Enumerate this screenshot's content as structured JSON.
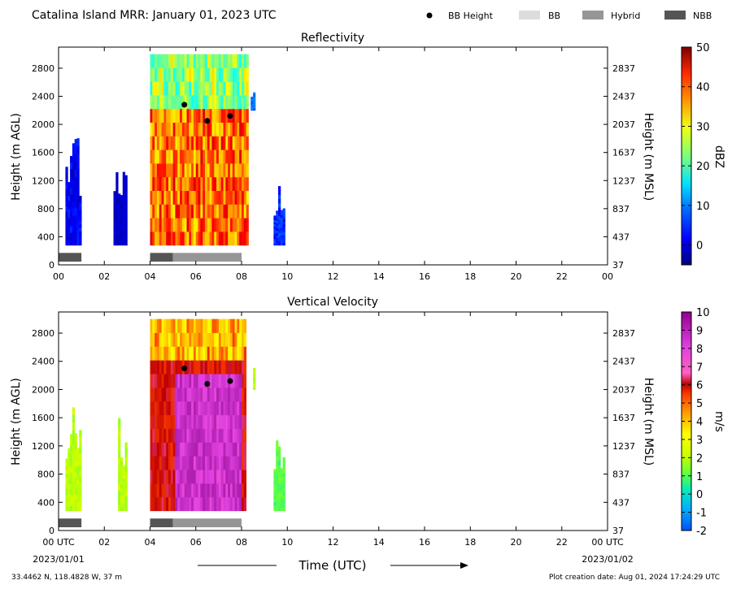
{
  "header": {
    "title": "Catalina Island MRR:  January 01, 2023 UTC",
    "legend": [
      {
        "label": "BB Height",
        "kind": "dot",
        "color": "#000000"
      },
      {
        "label": "BB",
        "kind": "box",
        "color": "#dcdcdc"
      },
      {
        "label": "Hybrid",
        "kind": "box",
        "color": "#969696"
      },
      {
        "label": "NBB",
        "kind": "box",
        "color": "#555555"
      }
    ]
  },
  "footer": {
    "location": "33.4462 N, 118.4828 W, 37 m",
    "creation": "Plot creation date: Aug 01, 2024 17:24:29 UTC",
    "date_left": "2023/01/01",
    "date_right": "2023/01/02"
  },
  "chart_data": [
    {
      "type": "heatmap",
      "title": "Reflectivity",
      "xlabel": "",
      "ylabel": "Height (m AGL)",
      "ylabel_right": "Height (m MSL)",
      "xlim": [
        0,
        24
      ],
      "ylim": [
        0,
        3100
      ],
      "x_ticks": [
        "00",
        "02",
        "04",
        "06",
        "08",
        "10",
        "12",
        "14",
        "16",
        "18",
        "20",
        "22",
        "00"
      ],
      "y_ticks": [
        0,
        400,
        800,
        1200,
        1600,
        2000,
        2400,
        2800
      ],
      "y_ticks_right": [
        37,
        437,
        837,
        1237,
        1637,
        2037,
        2437,
        2837
      ],
      "colorbar": {
        "label": "dBZ",
        "range": [
          -5,
          50
        ],
        "ticks": [
          "0",
          "10",
          "20",
          "30",
          "40",
          "50"
        ],
        "colormap": "jet"
      },
      "bb_height_points": [
        [
          5.5,
          2280
        ],
        [
          6.5,
          2050
        ],
        [
          7.5,
          2120
        ]
      ],
      "classification_bars": [
        {
          "start": 0.0,
          "end": 1.0,
          "class": "NBB"
        },
        {
          "start": 4.0,
          "end": 5.0,
          "class": "NBB"
        },
        {
          "start": 5.0,
          "end": 8.0,
          "class": "Hybrid"
        }
      ],
      "echo_regions": [
        {
          "x": [
            0.3,
            1.0
          ],
          "y": [
            280,
            1830
          ],
          "value_range": [
            -3,
            8
          ]
        },
        {
          "x": [
            2.4,
            3.0
          ],
          "y": [
            280,
            1720
          ],
          "value_range": [
            -3,
            2
          ]
        },
        {
          "x": [
            4.0,
            8.3
          ],
          "y": [
            280,
            3000
          ],
          "value_range": [
            15,
            45
          ]
        },
        {
          "x": [
            8.4,
            8.6
          ],
          "y": [
            2200,
            2600
          ],
          "value_range": [
            5,
            12
          ]
        },
        {
          "x": [
            9.4,
            9.9
          ],
          "y": [
            280,
            1200
          ],
          "value_range": [
            0,
            10
          ]
        }
      ]
    },
    {
      "type": "heatmap",
      "title": "Vertical Velocity",
      "xlabel": "Time (UTC)",
      "ylabel": "Height (m AGL)",
      "ylabel_right": "Height (m MSL)",
      "xlim": [
        0,
        24
      ],
      "ylim": [
        0,
        3100
      ],
      "x_ticks": [
        "00 UTC",
        "02",
        "04",
        "06",
        "08",
        "10",
        "12",
        "14",
        "16",
        "18",
        "20",
        "22",
        "00 UTC"
      ],
      "y_ticks": [
        0,
        400,
        800,
        1200,
        1600,
        2000,
        2400,
        2800
      ],
      "y_ticks_right": [
        37,
        437,
        837,
        1237,
        1637,
        2037,
        2437,
        2837
      ],
      "colorbar": {
        "label": "m/s",
        "range": [
          -2,
          10
        ],
        "ticks": [
          "-2",
          "-1",
          "0",
          "1",
          "2",
          "3",
          "4",
          "5",
          "6",
          "7",
          "8",
          "9",
          "10"
        ]
      },
      "bb_height_points": [
        [
          5.5,
          2300
        ],
        [
          6.5,
          2080
        ],
        [
          7.5,
          2120
        ]
      ],
      "classification_bars": [
        {
          "start": 0.0,
          "end": 1.0,
          "class": "NBB"
        },
        {
          "start": 4.0,
          "end": 5.0,
          "class": "NBB"
        },
        {
          "start": 5.0,
          "end": 8.0,
          "class": "Hybrid"
        }
      ],
      "echo_regions": [
        {
          "x": [
            0.3,
            1.0
          ],
          "y": [
            280,
            1800
          ],
          "value_range": [
            1,
            3
          ]
        },
        {
          "x": [
            2.6,
            3.0
          ],
          "y": [
            280,
            1700
          ],
          "value_range": [
            1,
            3
          ]
        },
        {
          "x": [
            4.0,
            8.2
          ],
          "y": [
            280,
            3000
          ],
          "value_range": [
            2,
            9
          ]
        },
        {
          "x": [
            8.5,
            8.6
          ],
          "y": [
            2000,
            2600
          ],
          "value_range": [
            1,
            3
          ]
        },
        {
          "x": [
            9.4,
            9.9
          ],
          "y": [
            280,
            1300
          ],
          "value_range": [
            0,
            2
          ]
        }
      ]
    }
  ]
}
